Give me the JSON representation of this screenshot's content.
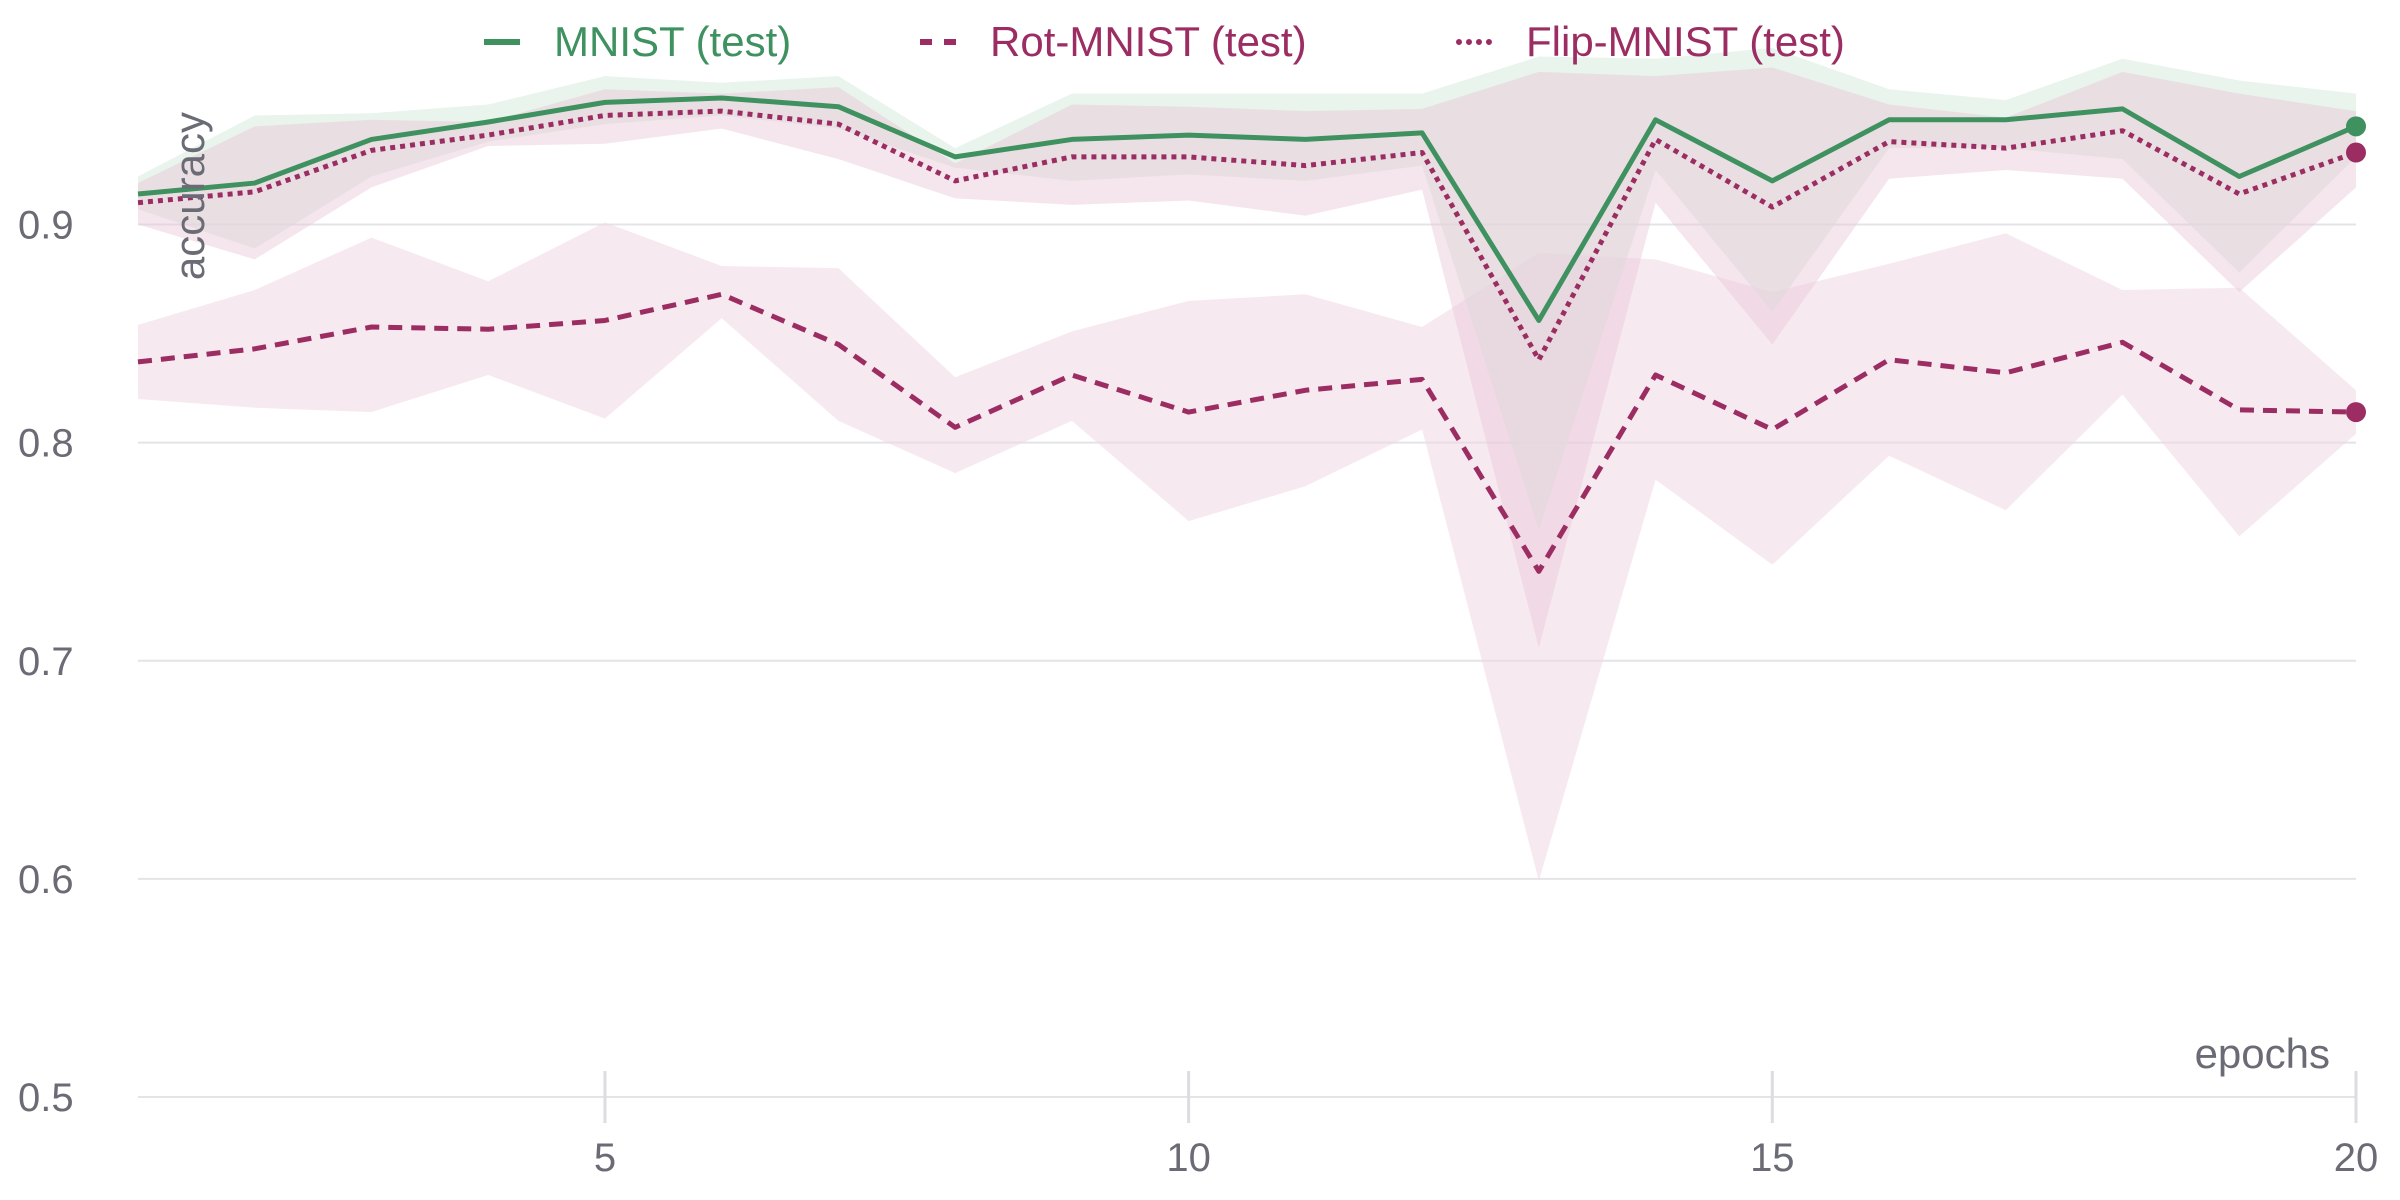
{
  "chart_data": {
    "type": "line",
    "title": "",
    "xlabel": "epochs",
    "ylabel": "accuracy",
    "xlim": [
      1,
      20
    ],
    "ylim": [
      0.5,
      0.98
    ],
    "x_ticks": [
      5,
      10,
      15,
      20
    ],
    "y_ticks": [
      0.5,
      0.6,
      0.7,
      0.8,
      0.9
    ],
    "grid": "horizontal",
    "legend_position": "top",
    "x": [
      1,
      2,
      3,
      4,
      5,
      6,
      7,
      8,
      9,
      10,
      11,
      12,
      13,
      14,
      15,
      16,
      17,
      18,
      19,
      20
    ],
    "series": [
      {
        "name": "MNIST (test)",
        "style": "solid",
        "color": "#3f9160",
        "band_color": "#d7ebdf",
        "values": [
          0.914,
          0.919,
          0.939,
          0.947,
          0.956,
          0.958,
          0.954,
          0.931,
          0.939,
          0.941,
          0.939,
          0.942,
          0.856,
          0.948,
          0.92,
          0.948,
          0.948,
          0.953,
          0.922,
          0.945
        ],
        "lower": [
          0.907,
          0.889,
          0.922,
          0.938,
          0.946,
          0.95,
          0.944,
          0.926,
          0.92,
          0.923,
          0.92,
          0.927,
          0.76,
          0.925,
          0.86,
          0.935,
          0.935,
          0.93,
          0.878,
          0.931
        ],
        "upper": [
          0.922,
          0.95,
          0.951,
          0.955,
          0.968,
          0.965,
          0.968,
          0.935,
          0.96,
          0.96,
          0.96,
          0.96,
          0.977,
          0.976,
          0.981,
          0.962,
          0.957,
          0.976,
          0.966,
          0.96
        ]
      },
      {
        "name": "Rot-MNIST (test)",
        "style": "dashed",
        "color": "#9b2d62",
        "band_color": "#f1d7e4",
        "values": [
          0.837,
          0.843,
          0.853,
          0.852,
          0.856,
          0.868,
          0.845,
          0.807,
          0.831,
          0.814,
          0.824,
          0.829,
          0.741,
          0.831,
          0.806,
          0.838,
          0.832,
          0.846,
          0.815,
          0.814
        ],
        "lower": [
          0.82,
          0.816,
          0.814,
          0.831,
          0.811,
          0.857,
          0.81,
          0.786,
          0.81,
          0.764,
          0.78,
          0.806,
          0.599,
          0.783,
          0.744,
          0.794,
          0.769,
          0.822,
          0.757,
          0.804
        ],
        "upper": [
          0.854,
          0.87,
          0.894,
          0.874,
          0.901,
          0.881,
          0.88,
          0.83,
          0.851,
          0.865,
          0.868,
          0.853,
          0.887,
          0.884,
          0.869,
          0.882,
          0.896,
          0.87,
          0.871,
          0.824
        ]
      },
      {
        "name": "Flip-MNIST (test)",
        "style": "dotted",
        "color": "#9b2d62",
        "band_color": "#e9c6d6",
        "values": [
          0.91,
          0.915,
          0.934,
          0.941,
          0.95,
          0.952,
          0.946,
          0.92,
          0.931,
          0.931,
          0.927,
          0.933,
          0.838,
          0.939,
          0.908,
          0.938,
          0.935,
          0.943,
          0.914,
          0.933
        ],
        "lower": [
          0.9,
          0.884,
          0.917,
          0.936,
          0.937,
          0.944,
          0.93,
          0.912,
          0.909,
          0.911,
          0.904,
          0.916,
          0.706,
          0.91,
          0.845,
          0.921,
          0.925,
          0.921,
          0.869,
          0.917
        ],
        "upper": [
          0.919,
          0.945,
          0.948,
          0.947,
          0.962,
          0.96,
          0.963,
          0.928,
          0.955,
          0.954,
          0.952,
          0.953,
          0.97,
          0.968,
          0.972,
          0.955,
          0.949,
          0.97,
          0.96,
          0.952
        ]
      }
    ]
  }
}
